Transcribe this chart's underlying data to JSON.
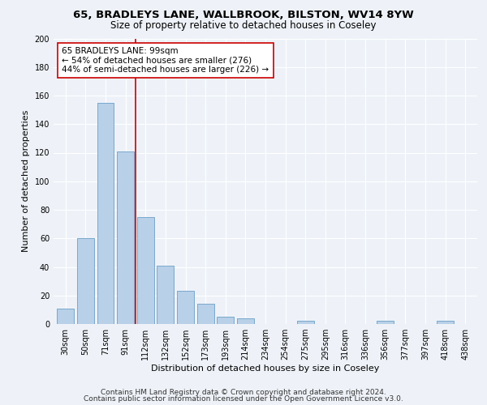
{
  "title1": "65, BRADLEYS LANE, WALLBROOK, BILSTON, WV14 8YW",
  "title2": "Size of property relative to detached houses in Coseley",
  "xlabel": "Distribution of detached houses by size in Coseley",
  "ylabel": "Number of detached properties",
  "categories": [
    "30sqm",
    "50sqm",
    "71sqm",
    "91sqm",
    "112sqm",
    "132sqm",
    "152sqm",
    "173sqm",
    "193sqm",
    "214sqm",
    "234sqm",
    "254sqm",
    "275sqm",
    "295sqm",
    "316sqm",
    "336sqm",
    "356sqm",
    "377sqm",
    "397sqm",
    "418sqm",
    "438sqm"
  ],
  "values": [
    11,
    60,
    155,
    121,
    75,
    41,
    23,
    14,
    5,
    4,
    0,
    0,
    2,
    0,
    0,
    0,
    2,
    0,
    0,
    2,
    0
  ],
  "bar_color": "#b8d0e8",
  "bar_edge_color": "#6a9fc8",
  "vline_color": "#cc0000",
  "annotation_text": "65 BRADLEYS LANE: 99sqm\n← 54% of detached houses are smaller (276)\n44% of semi-detached houses are larger (226) →",
  "annotation_box_color": "#ffffff",
  "annotation_box_edge": "#cc0000",
  "ylim": [
    0,
    200
  ],
  "yticks": [
    0,
    20,
    40,
    60,
    80,
    100,
    120,
    140,
    160,
    180,
    200
  ],
  "footer1": "Contains HM Land Registry data © Crown copyright and database right 2024.",
  "footer2": "Contains public sector information licensed under the Open Government Licence v3.0.",
  "bg_color": "#eef2f8",
  "grid_color": "#ffffff",
  "title_fontsize": 9.5,
  "subtitle_fontsize": 8.5,
  "ylabel_fontsize": 8,
  "xlabel_fontsize": 8,
  "tick_fontsize": 7,
  "annot_fontsize": 7.5,
  "footer_fontsize": 6.5
}
